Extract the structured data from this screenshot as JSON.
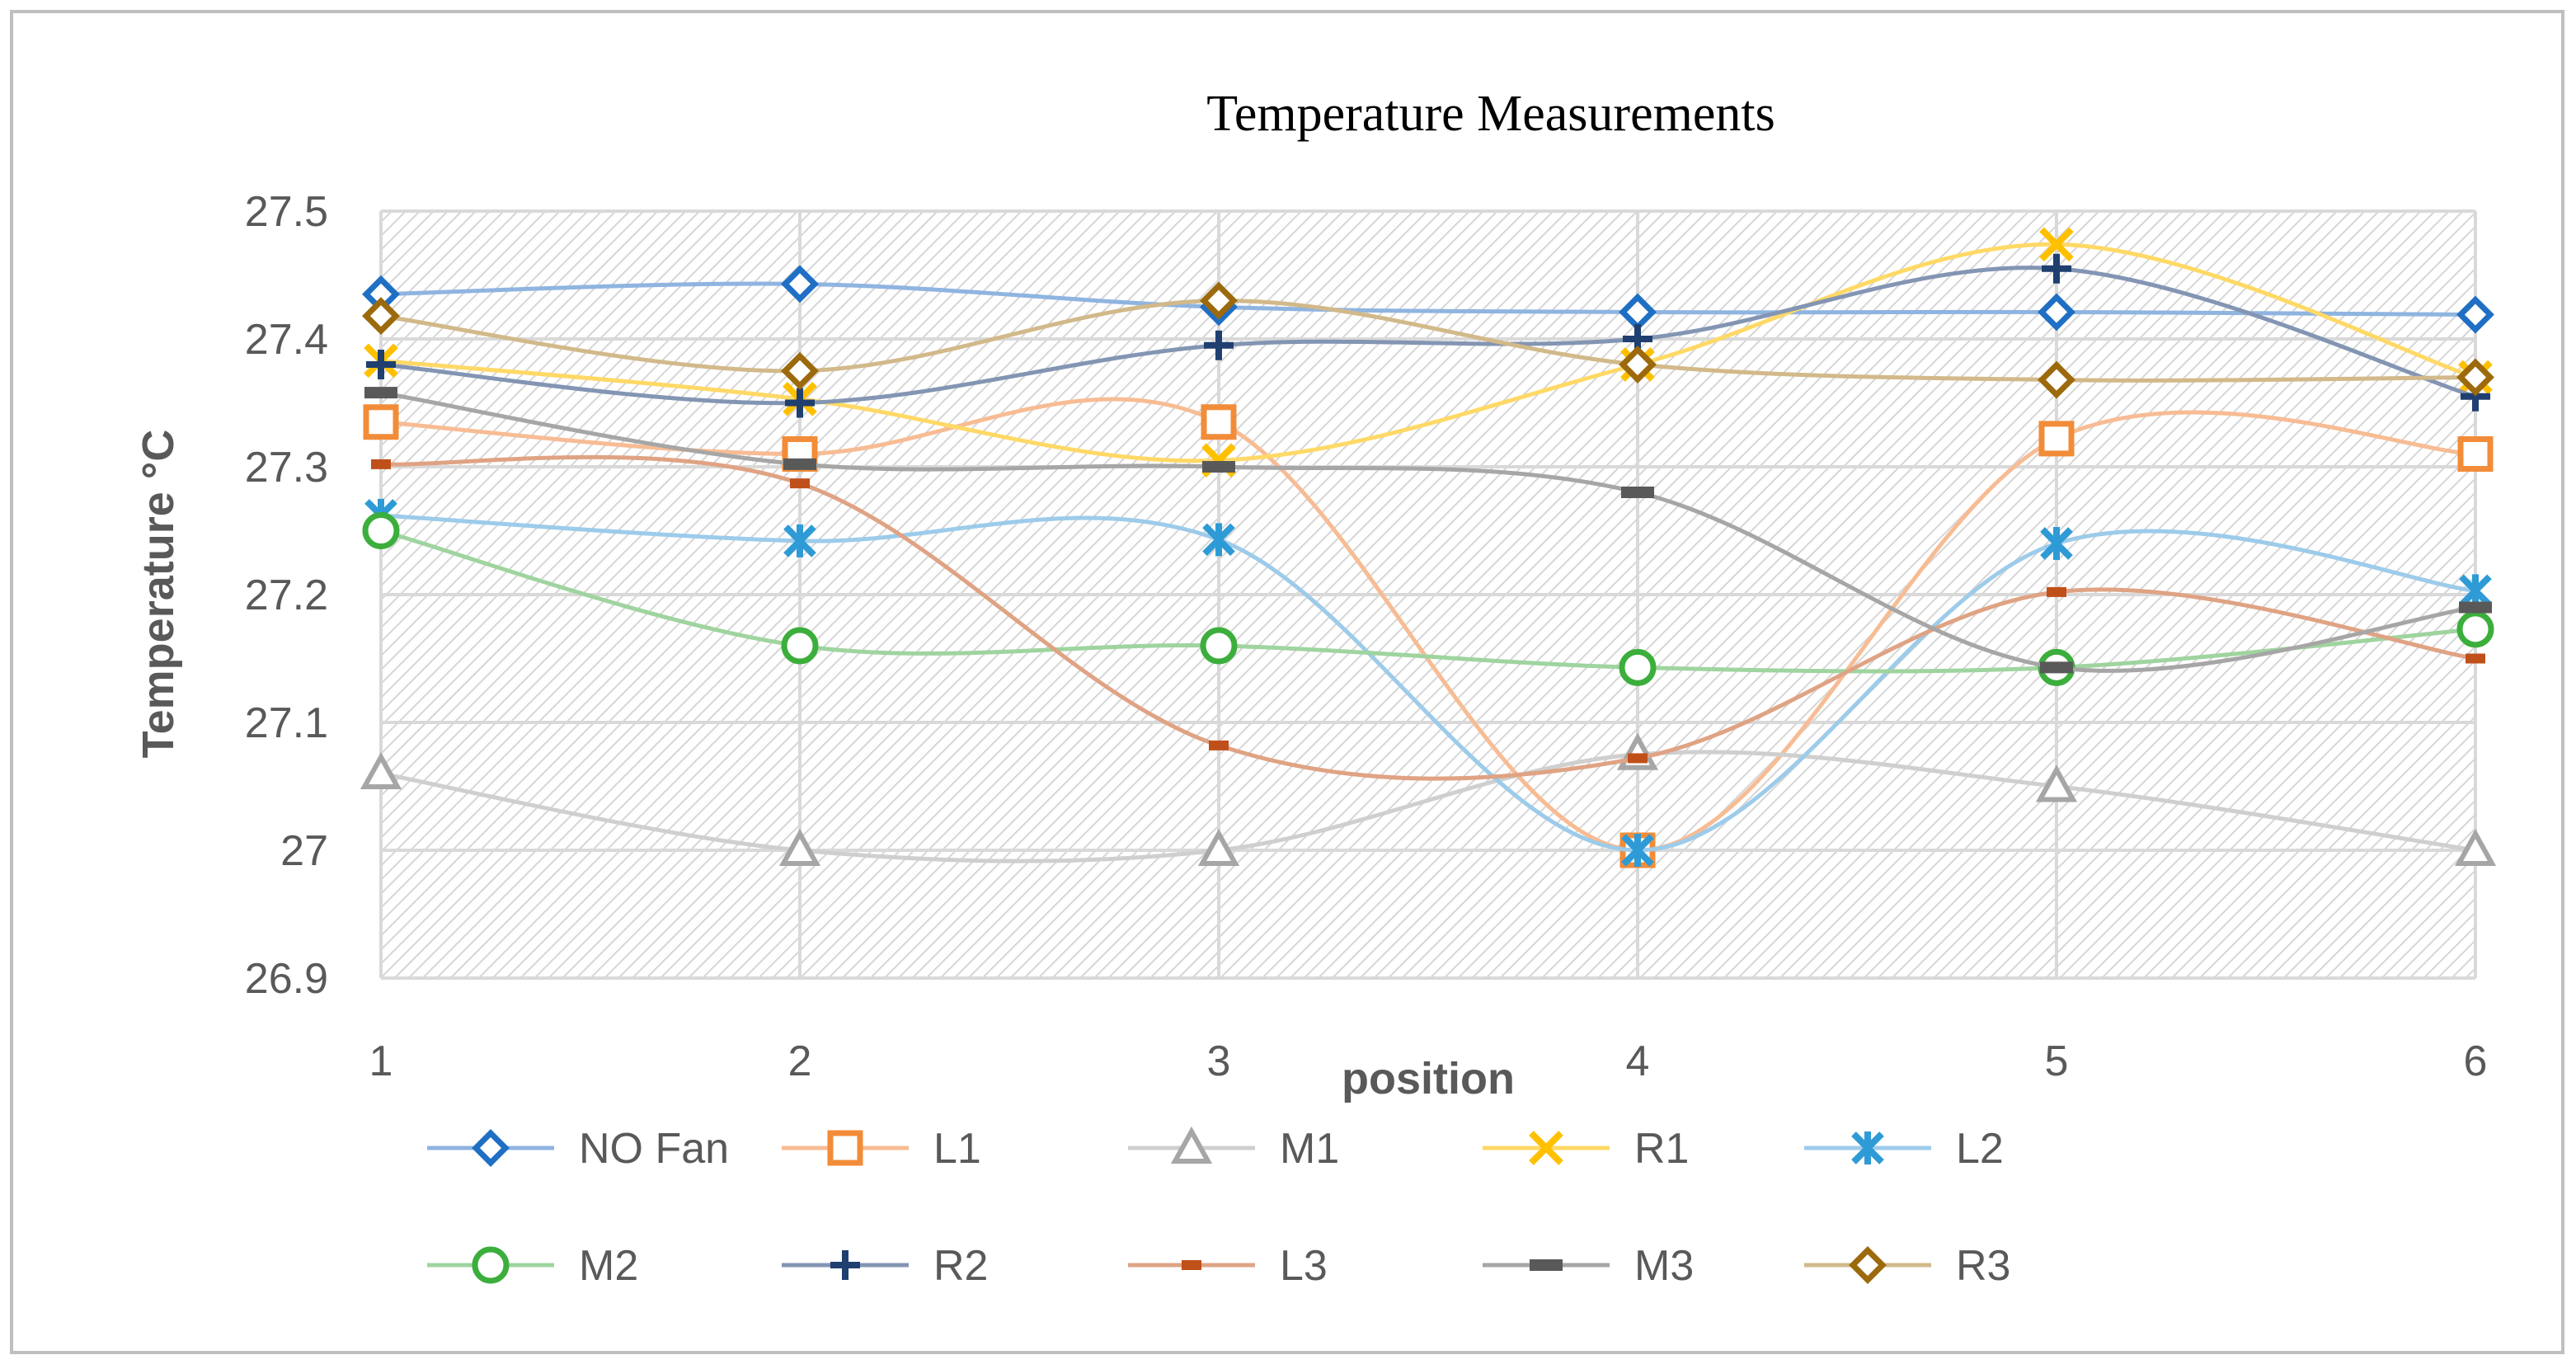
{
  "chart_data": {
    "type": "line",
    "title": "Temperature Measurements",
    "xlabel": "position",
    "ylabel": "Temperature °C",
    "categories": [
      "1",
      "2",
      "3",
      "4",
      "5",
      "6"
    ],
    "ylim": [
      26.9,
      27.5
    ],
    "yticks": [
      "27.5",
      "27.4",
      "27.3",
      "27.2",
      "27.1",
      "27",
      "26.9"
    ],
    "ytick_values": [
      27.5,
      27.4,
      27.3,
      27.2,
      27.1,
      27.0,
      26.9
    ],
    "grid": true,
    "legend_position": "bottom",
    "series": [
      {
        "name": "NO Fan",
        "color": "#1f6fc4",
        "line": "#8fb4e0",
        "marker": "diamond",
        "values": [
          27.435,
          27.443,
          27.425,
          27.421,
          27.421,
          27.419
        ]
      },
      {
        "name": "L1",
        "color": "#f28c38",
        "line": "#f7bc94",
        "marker": "square",
        "values": [
          27.335,
          27.31,
          27.335,
          27.0,
          27.322,
          27.31
        ]
      },
      {
        "name": "M1",
        "color": "#a6a6a6",
        "line": "#cfcfcf",
        "marker": "triangle",
        "values": [
          27.06,
          27.0,
          27.0,
          27.075,
          27.05,
          27.0
        ]
      },
      {
        "name": "R1",
        "color": "#ffc000",
        "line": "#ffd966",
        "marker": "x",
        "values": [
          27.383,
          27.353,
          27.305,
          27.38,
          27.474,
          27.37
        ]
      },
      {
        "name": "L2",
        "color": "#2e9bd6",
        "line": "#9dcbea",
        "marker": "asterisk",
        "values": [
          27.262,
          27.242,
          27.243,
          27.0,
          27.24,
          27.203
        ]
      },
      {
        "name": "M2",
        "color": "#3cae3c",
        "line": "#9fd49f",
        "marker": "circle",
        "values": [
          27.25,
          27.16,
          27.16,
          27.143,
          27.143,
          27.173
        ]
      },
      {
        "name": "R2",
        "color": "#1f3f70",
        "line": "#8395b3",
        "marker": "plus",
        "values": [
          27.38,
          27.35,
          27.395,
          27.4,
          27.455,
          27.355
        ]
      },
      {
        "name": "L3",
        "color": "#c0501a",
        "line": "#dfa384",
        "marker": "dash",
        "values": [
          27.302,
          27.287,
          27.082,
          27.072,
          27.202,
          27.15
        ]
      },
      {
        "name": "M3",
        "color": "#595959",
        "line": "#a6a6a6",
        "marker": "longdash",
        "values": [
          27.358,
          27.302,
          27.3,
          27.28,
          27.143,
          27.19
        ]
      },
      {
        "name": "R3",
        "color": "#9c6a0c",
        "line": "#d2b98a",
        "marker": "diamond",
        "values": [
          27.418,
          27.375,
          27.43,
          27.38,
          27.368,
          27.37
        ]
      }
    ]
  }
}
